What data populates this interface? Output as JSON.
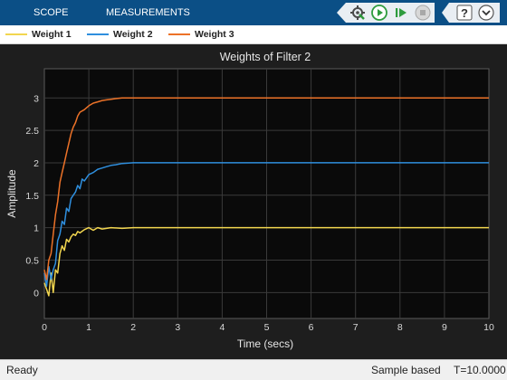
{
  "toolbar": {
    "tabs": [
      {
        "label": "SCOPE"
      },
      {
        "label": "MEASUREMENTS"
      }
    ],
    "controls": [
      "configure-icon",
      "run-icon",
      "step-forward-icon",
      "stop-icon"
    ],
    "utilities": [
      "help-icon",
      "expand-icon"
    ]
  },
  "legend": {
    "items": [
      {
        "label": "Weight 1",
        "color": "#f2d64f"
      },
      {
        "label": "Weight 2",
        "color": "#2f8fde"
      },
      {
        "label": "Weight 3",
        "color": "#ec7228"
      }
    ]
  },
  "chart_data": {
    "type": "line",
    "title": "Weights of Filter 2",
    "xlabel": "Time (secs)",
    "ylabel": "Amplitude",
    "xlim": [
      0,
      10
    ],
    "ylim": [
      -0.4,
      3.45
    ],
    "xticks": [
      "0",
      "1",
      "2",
      "3",
      "4",
      "5",
      "6",
      "7",
      "8",
      "9",
      "10"
    ],
    "yticks": [
      "0",
      "0.5",
      "1",
      "1.5",
      "2",
      "2.5",
      "3"
    ],
    "grid": true,
    "series": [
      {
        "name": "Weight 1",
        "color": "#f2d64f",
        "x": [
          0,
          0.05,
          0.1,
          0.15,
          0.2,
          0.25,
          0.3,
          0.35,
          0.4,
          0.45,
          0.5,
          0.55,
          0.6,
          0.65,
          0.7,
          0.75,
          0.8,
          0.9,
          1.0,
          1.1,
          1.2,
          1.3,
          1.5,
          1.75,
          2.0,
          2.5,
          3.0,
          4.0,
          5.0,
          6.0,
          7.0,
          8.0,
          9.0,
          10.0
        ],
        "y": [
          0.15,
          0.05,
          -0.05,
          0.3,
          0.0,
          0.35,
          0.3,
          0.6,
          0.72,
          0.65,
          0.82,
          0.78,
          0.86,
          0.9,
          0.88,
          0.94,
          0.92,
          0.97,
          1.0,
          0.96,
          1.0,
          0.98,
          1.0,
          0.99,
          1.0,
          1.0,
          1.0,
          1.0,
          1.0,
          1.0,
          1.0,
          1.0,
          1.0,
          1.0
        ]
      },
      {
        "name": "Weight 2",
        "color": "#2f8fde",
        "x": [
          0,
          0.05,
          0.1,
          0.15,
          0.2,
          0.25,
          0.3,
          0.35,
          0.4,
          0.45,
          0.5,
          0.55,
          0.6,
          0.65,
          0.7,
          0.75,
          0.8,
          0.85,
          0.9,
          1.0,
          1.1,
          1.2,
          1.3,
          1.4,
          1.5,
          1.6,
          1.75,
          2.0,
          2.5,
          3.0,
          4.0,
          5.0,
          6.0,
          7.0,
          8.0,
          9.0,
          10.0
        ],
        "y": [
          0.3,
          0.1,
          0.4,
          0.2,
          0.35,
          0.45,
          0.8,
          0.9,
          1.1,
          1.05,
          1.3,
          1.25,
          1.45,
          1.5,
          1.55,
          1.65,
          1.6,
          1.75,
          1.72,
          1.82,
          1.85,
          1.9,
          1.92,
          1.94,
          1.96,
          1.97,
          1.99,
          2.0,
          2.0,
          2.0,
          2.0,
          2.0,
          2.0,
          2.0,
          2.0,
          2.0,
          2.0
        ]
      },
      {
        "name": "Weight 3",
        "color": "#ec7228",
        "x": [
          0,
          0.05,
          0.1,
          0.15,
          0.2,
          0.25,
          0.3,
          0.35,
          0.4,
          0.45,
          0.5,
          0.55,
          0.6,
          0.65,
          0.7,
          0.75,
          0.8,
          0.9,
          1.0,
          1.1,
          1.2,
          1.3,
          1.4,
          1.5,
          1.6,
          1.75,
          2.0,
          2.5,
          3.0,
          4.0,
          5.0,
          6.0,
          7.0,
          8.0,
          9.0,
          10.0
        ],
        "y": [
          0.35,
          0.2,
          0.5,
          0.6,
          0.9,
          1.2,
          1.4,
          1.7,
          1.85,
          2.0,
          2.15,
          2.3,
          2.45,
          2.55,
          2.62,
          2.72,
          2.78,
          2.82,
          2.88,
          2.92,
          2.94,
          2.96,
          2.97,
          2.98,
          2.99,
          3.0,
          3.0,
          3.0,
          3.0,
          3.0,
          3.0,
          3.0,
          3.0,
          3.0,
          3.0,
          3.0
        ]
      }
    ]
  },
  "status": {
    "left": "Ready",
    "mode": "Sample based",
    "time": "T=10.0000"
  }
}
